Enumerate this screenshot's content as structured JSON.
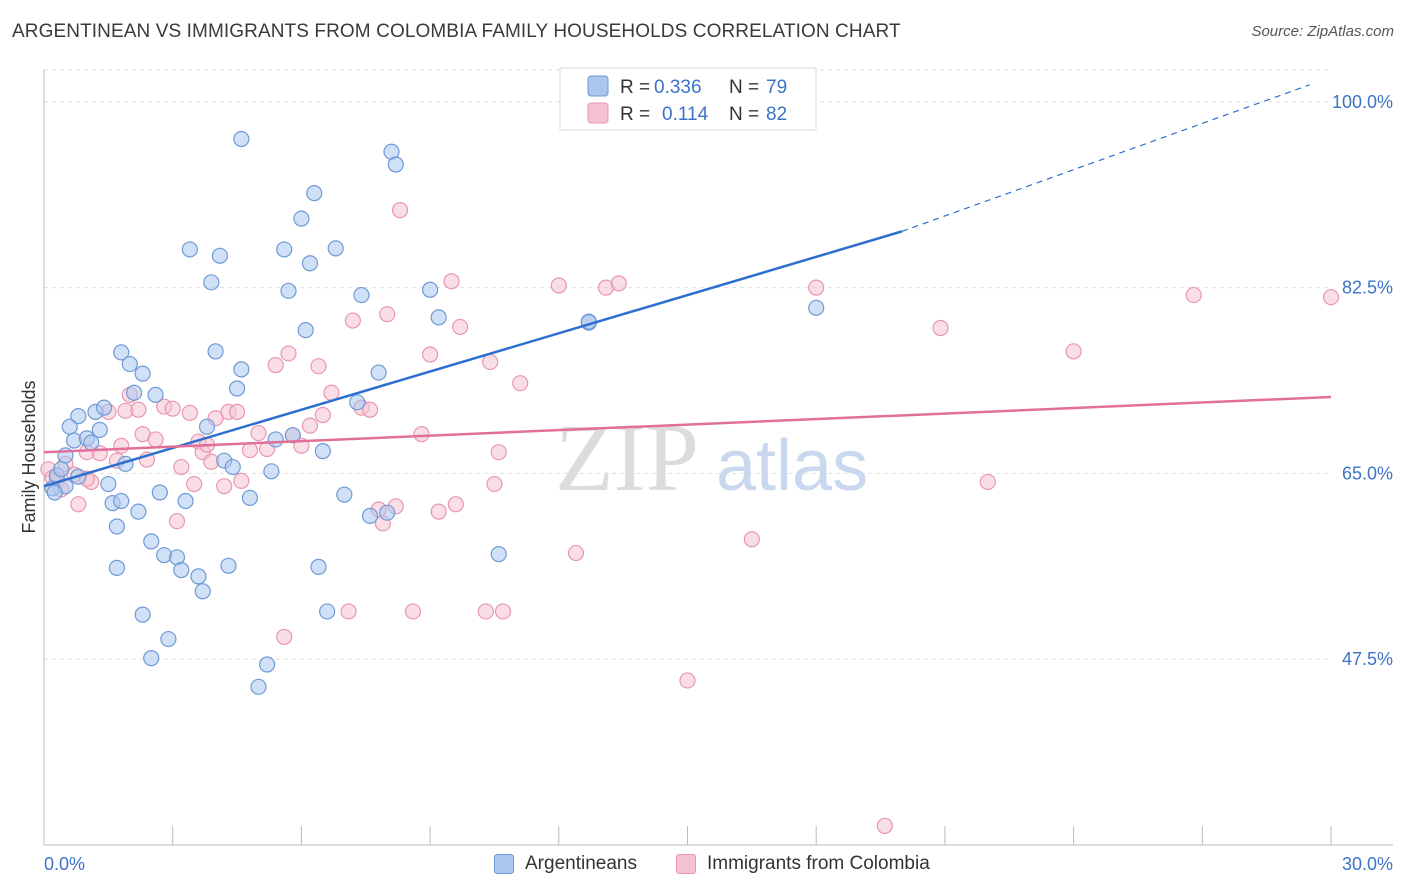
{
  "header": {
    "title": "ARGENTINEAN VS IMMIGRANTS FROM COLOMBIA FAMILY HOUSEHOLDS CORRELATION CHART",
    "source": "Source: ZipAtlas.com"
  },
  "watermark": {
    "zip": "ZIP",
    "atlas": "atlas"
  },
  "colors": {
    "blue_fill": "#a9c6ee",
    "blue_stroke": "#6f9ad6",
    "blue_line": "#2d6fce",
    "pink_fill": "#f5c2d1",
    "pink_stroke": "#e996b0",
    "pink_line": "#e0709a",
    "axis_label": "#3c73c8",
    "grid": "#e0e0e0"
  },
  "chart_data": {
    "type": "scatter",
    "ylabel": "Family Households",
    "xlim": [
      0,
      30
    ],
    "ylim": [
      30,
      103
    ],
    "x_tick_labels": [
      "0.0%",
      "30.0%"
    ],
    "y_ticks": [
      47.5,
      65.0,
      82.5,
      100.0
    ],
    "y_tick_labels": [
      "47.5%",
      "65.0%",
      "82.5%",
      "100.0%"
    ],
    "grid": true,
    "legend_position": "top-center",
    "legend": [
      {
        "r_label": "R =",
        "r_value": "0.336",
        "n_label": "N =",
        "n_value": "79"
      },
      {
        "r_label": "R =",
        "r_value": "0.114",
        "n_label": "N =",
        "n_value": "82"
      }
    ],
    "series": [
      {
        "name": "Argentineans",
        "color": "blue",
        "trend": {
          "x0": 0.0,
          "y0": 63.8,
          "x1": 20.0,
          "y1": 87.8,
          "dash_to_x": 29.5,
          "dash_to_y": 101.6
        },
        "points": [
          [
            0.2,
            63.6
          ],
          [
            0.3,
            64.8
          ],
          [
            0.4,
            65.4
          ],
          [
            0.5,
            66.7
          ],
          [
            0.5,
            63.8
          ],
          [
            0.6,
            69.4
          ],
          [
            0.7,
            68.1
          ],
          [
            0.8,
            64.7
          ],
          [
            0.8,
            70.4
          ],
          [
            1.0,
            68.3
          ],
          [
            1.1,
            67.9
          ],
          [
            1.2,
            70.8
          ],
          [
            1.3,
            69.1
          ],
          [
            1.4,
            71.2
          ],
          [
            1.5,
            64.0
          ],
          [
            1.6,
            62.2
          ],
          [
            1.7,
            60.0
          ],
          [
            1.7,
            56.1
          ],
          [
            1.8,
            62.4
          ],
          [
            1.8,
            76.4
          ],
          [
            1.9,
            65.9
          ],
          [
            2.0,
            75.3
          ],
          [
            2.1,
            72.6
          ],
          [
            2.2,
            61.4
          ],
          [
            2.3,
            74.4
          ],
          [
            2.3,
            51.7
          ],
          [
            2.5,
            47.6
          ],
          [
            2.5,
            58.6
          ],
          [
            2.6,
            72.4
          ],
          [
            2.7,
            63.2
          ],
          [
            2.8,
            57.3
          ],
          [
            2.9,
            49.4
          ],
          [
            3.1,
            57.1
          ],
          [
            3.2,
            55.9
          ],
          [
            3.3,
            62.4
          ],
          [
            3.4,
            86.1
          ],
          [
            3.6,
            55.3
          ],
          [
            3.7,
            53.9
          ],
          [
            3.8,
            69.4
          ],
          [
            3.9,
            83.0
          ],
          [
            4.0,
            76.5
          ],
          [
            4.1,
            85.5
          ],
          [
            4.2,
            66.2
          ],
          [
            4.3,
            56.3
          ],
          [
            4.4,
            65.6
          ],
          [
            4.5,
            73.0
          ],
          [
            4.6,
            74.8
          ],
          [
            4.6,
            96.5
          ],
          [
            4.8,
            62.7
          ],
          [
            5.0,
            44.9
          ],
          [
            5.2,
            47.0
          ],
          [
            5.3,
            65.2
          ],
          [
            5.4,
            68.2
          ],
          [
            5.6,
            86.1
          ],
          [
            5.7,
            82.2
          ],
          [
            5.8,
            68.6
          ],
          [
            6.0,
            89.0
          ],
          [
            6.1,
            78.5
          ],
          [
            6.2,
            84.8
          ],
          [
            6.3,
            91.4
          ],
          [
            6.4,
            56.2
          ],
          [
            6.5,
            67.1
          ],
          [
            6.6,
            52.0
          ],
          [
            6.8,
            86.2
          ],
          [
            7.0,
            63.0
          ],
          [
            7.3,
            71.7
          ],
          [
            7.4,
            81.8
          ],
          [
            7.6,
            61.0
          ],
          [
            7.8,
            74.5
          ],
          [
            8.0,
            61.3
          ],
          [
            8.1,
            95.3
          ],
          [
            8.2,
            94.1
          ],
          [
            9.0,
            82.3
          ],
          [
            9.2,
            79.7
          ],
          [
            10.6,
            57.4
          ],
          [
            12.7,
            79.2
          ],
          [
            12.7,
            79.3
          ],
          [
            18.0,
            80.6
          ],
          [
            0.25,
            63.2
          ]
        ]
      },
      {
        "name": "Immigrants from Colombia",
        "color": "pink",
        "trend": {
          "x0": 0.0,
          "y0": 67.0,
          "x1": 30.0,
          "y1": 72.2
        },
        "points": [
          [
            0.1,
            65.4
          ],
          [
            0.3,
            64.4
          ],
          [
            0.5,
            65.9
          ],
          [
            0.7,
            64.9
          ],
          [
            0.8,
            62.1
          ],
          [
            1.0,
            67.0
          ],
          [
            1.1,
            64.2
          ],
          [
            1.3,
            66.9
          ],
          [
            1.5,
            70.8
          ],
          [
            1.7,
            66.2
          ],
          [
            1.8,
            67.6
          ],
          [
            1.9,
            70.9
          ],
          [
            2.0,
            72.4
          ],
          [
            2.2,
            71.0
          ],
          [
            2.3,
            68.7
          ],
          [
            2.4,
            66.3
          ],
          [
            2.6,
            68.2
          ],
          [
            2.8,
            71.3
          ],
          [
            3.0,
            71.1
          ],
          [
            3.1,
            60.5
          ],
          [
            3.2,
            65.6
          ],
          [
            3.4,
            70.7
          ],
          [
            3.5,
            64.0
          ],
          [
            3.6,
            68.0
          ],
          [
            3.7,
            67.0
          ],
          [
            3.8,
            67.7
          ],
          [
            3.9,
            66.1
          ],
          [
            4.0,
            70.2
          ],
          [
            4.2,
            63.8
          ],
          [
            4.3,
            70.8
          ],
          [
            4.5,
            70.8
          ],
          [
            4.6,
            64.3
          ],
          [
            4.8,
            67.2
          ],
          [
            5.0,
            68.8
          ],
          [
            5.2,
            67.3
          ],
          [
            5.4,
            75.2
          ],
          [
            5.6,
            49.6
          ],
          [
            5.7,
            76.3
          ],
          [
            5.8,
            68.6
          ],
          [
            6.0,
            67.6
          ],
          [
            6.2,
            69.5
          ],
          [
            6.4,
            75.1
          ],
          [
            6.5,
            70.5
          ],
          [
            6.7,
            72.6
          ],
          [
            7.1,
            52.0
          ],
          [
            7.2,
            79.4
          ],
          [
            7.4,
            71.2
          ],
          [
            7.6,
            71.0
          ],
          [
            7.8,
            61.6
          ],
          [
            7.9,
            60.3
          ],
          [
            8.0,
            80.0
          ],
          [
            8.2,
            61.9
          ],
          [
            8.3,
            89.8
          ],
          [
            8.6,
            52.0
          ],
          [
            8.8,
            68.7
          ],
          [
            9.0,
            76.2
          ],
          [
            9.2,
            61.4
          ],
          [
            9.5,
            83.1
          ],
          [
            9.6,
            62.1
          ],
          [
            9.7,
            78.8
          ],
          [
            10.3,
            52.0
          ],
          [
            10.4,
            75.5
          ],
          [
            10.5,
            64.0
          ],
          [
            10.6,
            67.0
          ],
          [
            10.7,
            52.0
          ],
          [
            11.1,
            73.5
          ],
          [
            12.0,
            82.7
          ],
          [
            12.4,
            57.5
          ],
          [
            13.1,
            82.5
          ],
          [
            13.4,
            82.9
          ],
          [
            15.0,
            45.5
          ],
          [
            16.5,
            58.8
          ],
          [
            18.0,
            82.5
          ],
          [
            19.6,
            31.8
          ],
          [
            20.9,
            78.7
          ],
          [
            22.0,
            64.2
          ],
          [
            24.0,
            76.5
          ],
          [
            26.8,
            81.8
          ],
          [
            30.0,
            81.6
          ],
          [
            0.2,
            64.6
          ],
          [
            0.4,
            63.5
          ],
          [
            1.0,
            64.5
          ]
        ]
      }
    ]
  }
}
